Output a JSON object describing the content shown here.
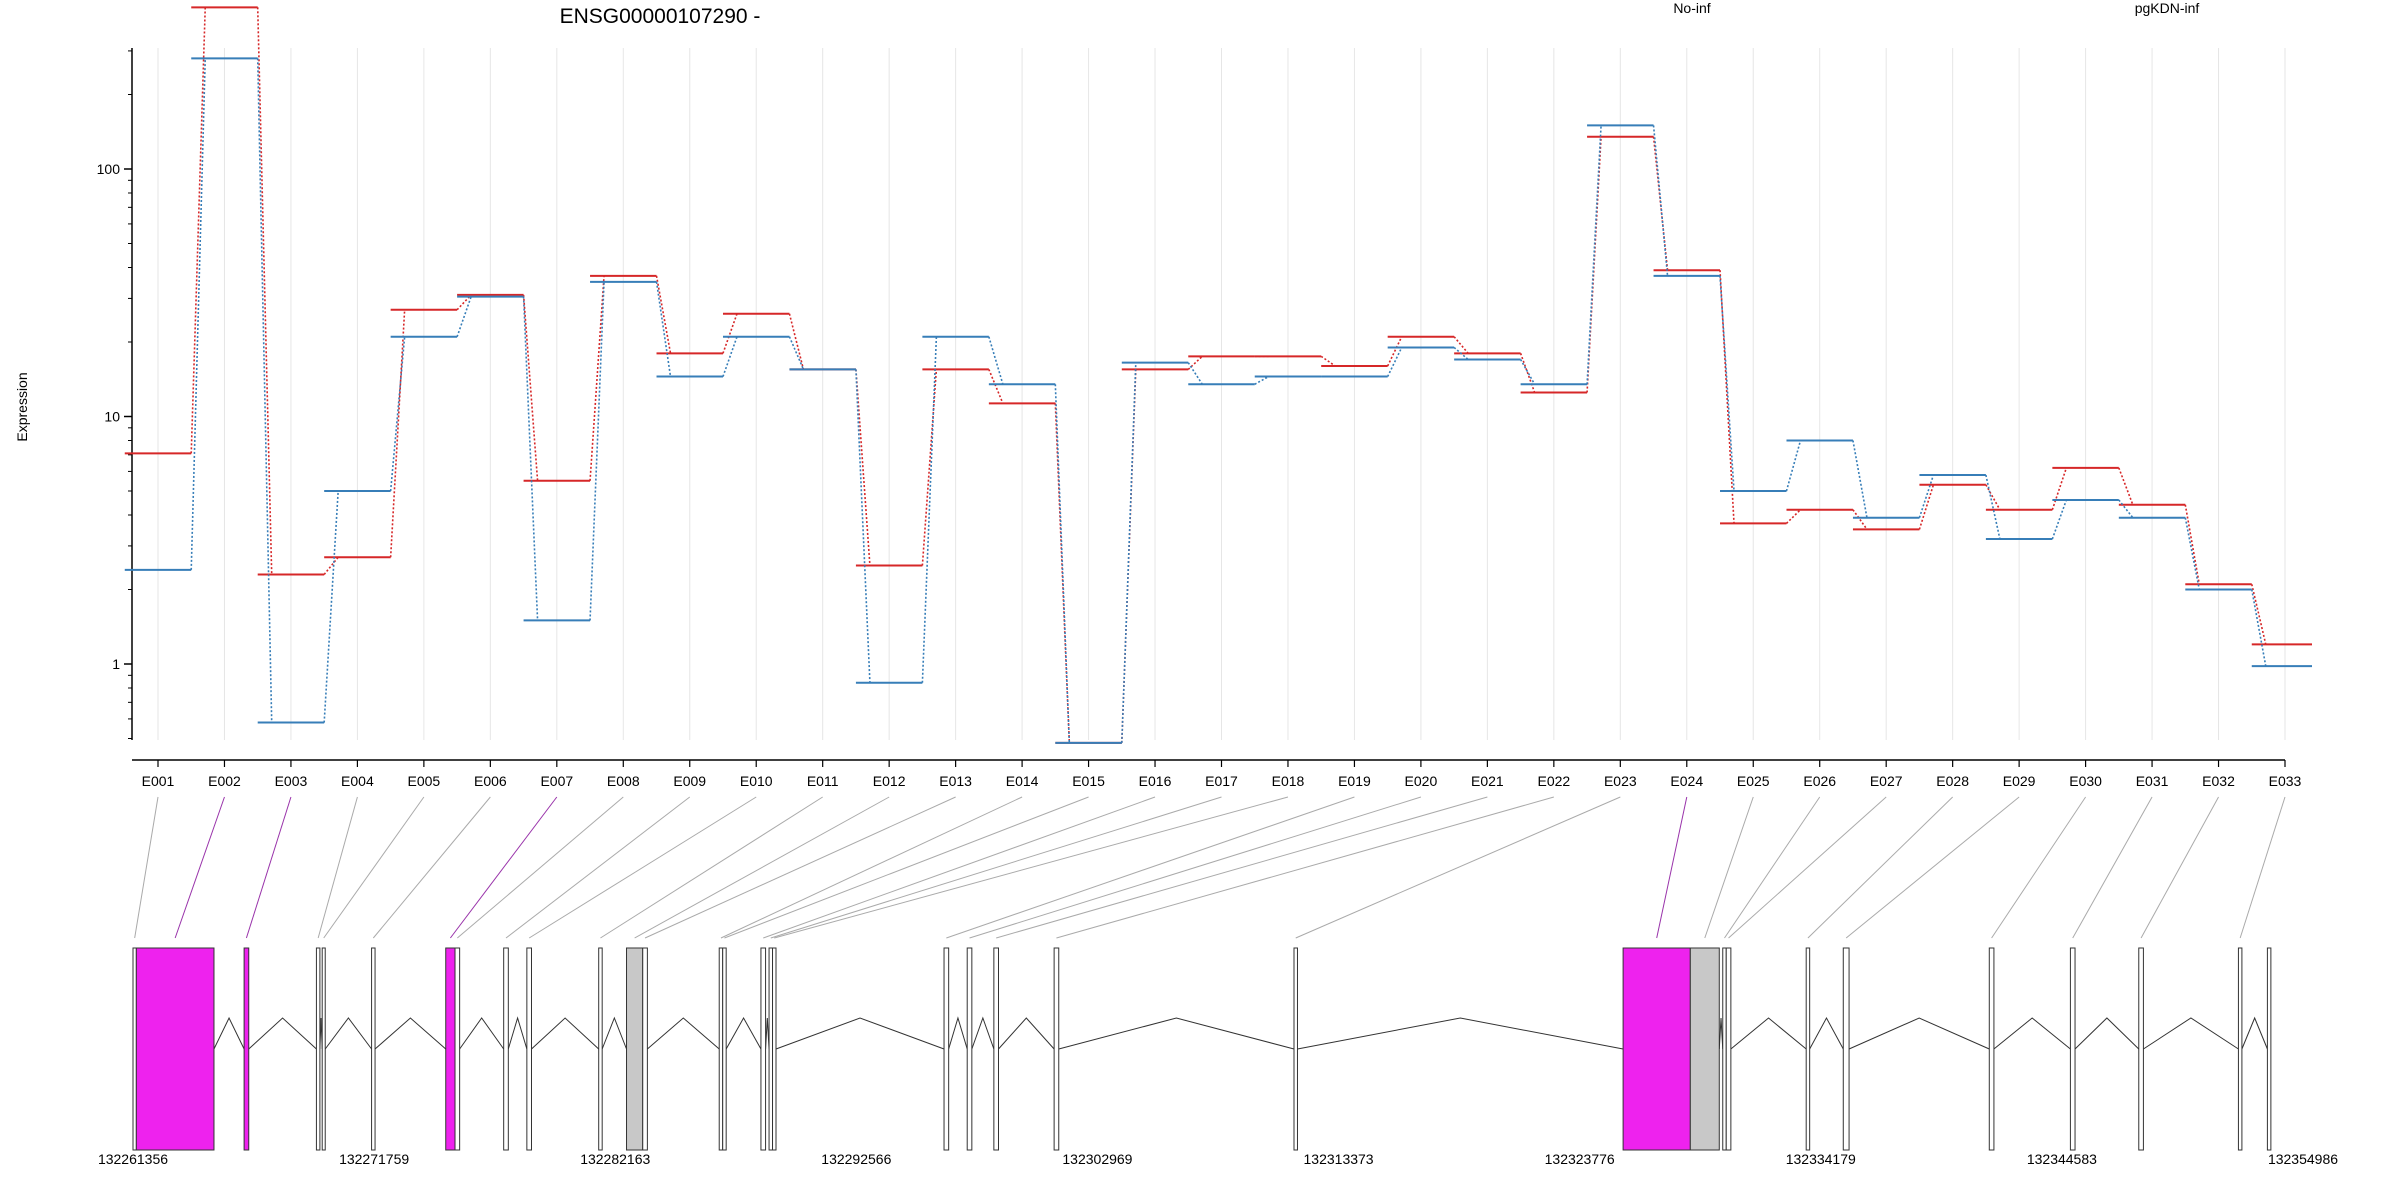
{
  "chart_data": {
    "type": "line",
    "title": "ENSG00000107290 -",
    "ylabel": "Expression",
    "xlabel": "",
    "y_scale": "log",
    "y_ticks": [
      1,
      10,
      100
    ],
    "y_tick_labels": [
      "1",
      "10",
      "100"
    ],
    "grid": true,
    "legend_placement": "top",
    "categories": [
      "E001",
      "E002",
      "E003",
      "E004",
      "E005",
      "E006",
      "E007",
      "E008",
      "E009",
      "E010",
      "E011",
      "E012",
      "E013",
      "E014",
      "E015",
      "E016",
      "E017",
      "E018",
      "E019",
      "E020",
      "E021",
      "E022",
      "E023",
      "E024",
      "E025",
      "E026",
      "E027",
      "E028",
      "E029",
      "E030",
      "E031",
      "E032",
      "E033"
    ],
    "series": [
      {
        "name": "No-inf",
        "color": "#d62728",
        "values": [
          7.1,
          450,
          2.3,
          2.7,
          27,
          31,
          5.5,
          37,
          18,
          26,
          15.5,
          2.5,
          15.5,
          11.3,
          0.48,
          15.5,
          17.5,
          17.5,
          16,
          21,
          18,
          12.5,
          135,
          39,
          3.7,
          4.2,
          3.5,
          5.3,
          4.2,
          6.2,
          4.4,
          2.1,
          1.2
        ]
      },
      {
        "name": "pgKDN-inf",
        "color": "#377eb8",
        "values": [
          2.4,
          280,
          0.58,
          5,
          21,
          30.5,
          1.5,
          35,
          14.5,
          21,
          15.5,
          0.84,
          21,
          13.5,
          0.48,
          16.5,
          13.5,
          14.5,
          14.5,
          19,
          17,
          13.5,
          150,
          37,
          5,
          8,
          3.9,
          5.8,
          3.2,
          4.6,
          3.9,
          2,
          0.98
        ]
      }
    ],
    "gene_model": {
      "genomic_ticks": [
        "132261356",
        "132271759",
        "132282163",
        "132292566",
        "132302969",
        "132313373",
        "132323776",
        "132334179",
        "132344583",
        "132354986"
      ],
      "exons": [
        {
          "id": "E001",
          "start": 132261356,
          "end": 132261500,
          "fill": "#ffffff",
          "highlight": false
        },
        {
          "id": "E002",
          "start": 132261500,
          "end": 132264850,
          "fill": "#ee22ee",
          "highlight": true
        },
        {
          "id": "E003",
          "start": 132266150,
          "end": 132266350,
          "fill": "#ee22ee",
          "highlight": true
        },
        {
          "id": "E004",
          "start": 132269270,
          "end": 132269420,
          "fill": "#ffffff",
          "highlight": false
        },
        {
          "id": "E005",
          "start": 132269520,
          "end": 132269650,
          "fill": "#ffffff",
          "highlight": false
        },
        {
          "id": "E006",
          "start": 132271650,
          "end": 132271800,
          "fill": "#ffffff",
          "highlight": false
        },
        {
          "id": "E007",
          "start": 132274850,
          "end": 132275250,
          "fill": "#ee22ee",
          "highlight": true
        },
        {
          "id": "E008",
          "start": 132275250,
          "end": 132275450,
          "fill": "#ffffff",
          "highlight": false
        },
        {
          "id": "E009",
          "start": 132277350,
          "end": 132277550,
          "fill": "#ffffff",
          "highlight": false
        },
        {
          "id": "E010",
          "start": 132278350,
          "end": 132278550,
          "fill": "#ffffff",
          "highlight": false
        },
        {
          "id": "E011",
          "start": 132281450,
          "end": 132281600,
          "fill": "#ffffff",
          "highlight": false
        },
        {
          "id": "E012",
          "start": 132282650,
          "end": 132283350,
          "fill": "#c8c8c8",
          "highlight": false
        },
        {
          "id": "E013",
          "start": 132283350,
          "end": 132283550,
          "fill": "#ffffff",
          "highlight": false
        },
        {
          "id": "E014",
          "start": 132286650,
          "end": 132286800,
          "fill": "#ffffff",
          "highlight": false
        },
        {
          "id": "E015",
          "start": 132286800,
          "end": 132286950,
          "fill": "#ffffff",
          "highlight": false
        },
        {
          "id": "E016",
          "start": 132288450,
          "end": 132288650,
          "fill": "#ffffff",
          "highlight": false
        },
        {
          "id": "E017",
          "start": 132288800,
          "end": 132288950,
          "fill": "#ffffff",
          "highlight": false
        },
        {
          "id": "E018",
          "start": 132288950,
          "end": 132289100,
          "fill": "#ffffff",
          "highlight": false
        },
        {
          "id": "E019",
          "start": 132296350,
          "end": 132296550,
          "fill": "#ffffff",
          "highlight": false
        },
        {
          "id": "E020",
          "start": 132297350,
          "end": 132297550,
          "fill": "#ffffff",
          "highlight": false
        },
        {
          "id": "E021",
          "start": 132298500,
          "end": 132298700,
          "fill": "#ffffff",
          "highlight": false
        },
        {
          "id": "E022",
          "start": 132301100,
          "end": 132301300,
          "fill": "#ffffff",
          "highlight": false
        },
        {
          "id": "E023",
          "start": 132311450,
          "end": 132311600,
          "fill": "#ffffff",
          "highlight": false
        },
        {
          "id": "E024",
          "start": 132325650,
          "end": 132328550,
          "fill": "#ee22ee",
          "highlight": true
        },
        {
          "id": "E025",
          "start": 132328550,
          "end": 132329800,
          "fill": "#c8c8c8",
          "highlight": false
        },
        {
          "id": "E026",
          "start": 132329950,
          "end": 132330100,
          "fill": "#ffffff",
          "highlight": false
        },
        {
          "id": "E027",
          "start": 132330100,
          "end": 132330300,
          "fill": "#ffffff",
          "highlight": false
        },
        {
          "id": "E028",
          "start": 132333550,
          "end": 132333700,
          "fill": "#ffffff",
          "highlight": false
        },
        {
          "id": "E029",
          "start": 132335150,
          "end": 132335400,
          "fill": "#ffffff",
          "highlight": false
        },
        {
          "id": "E030",
          "start": 132341450,
          "end": 132341650,
          "fill": "#ffffff",
          "highlight": false
        },
        {
          "id": "E031",
          "start": 132344950,
          "end": 132345150,
          "fill": "#ffffff",
          "highlight": false
        },
        {
          "id": "E032",
          "start": 132347900,
          "end": 132348100,
          "fill": "#ffffff",
          "highlight": false
        },
        {
          "id": "E033",
          "start": 132352200,
          "end": 132352350,
          "fill": "#ffffff",
          "highlight": false
        },
        {
          "id": "E034",
          "start": 132353450,
          "end": 132353600,
          "fill": "#ffffff",
          "highlight": false
        }
      ]
    }
  }
}
